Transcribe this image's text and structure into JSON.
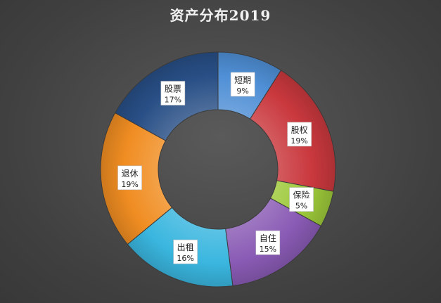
{
  "title": "资产分布2019",
  "chart_data": {
    "type": "pie",
    "variant": "doughnut",
    "title": "资产分布2019",
    "categories": [
      "短期",
      "股权",
      "保险",
      "自住",
      "出租",
      "退休",
      "股票"
    ],
    "values": [
      9,
      19,
      5,
      15,
      16,
      19,
      17
    ],
    "labels": [
      "9%",
      "19%",
      "5%",
      "15%",
      "16%",
      "19%",
      "17%"
    ],
    "colors": [
      "#4f8fd6",
      "#c9383d",
      "#9dc93a",
      "#8a5bb5",
      "#3ab6df",
      "#f08d22",
      "#284f86"
    ],
    "legend": "none"
  }
}
